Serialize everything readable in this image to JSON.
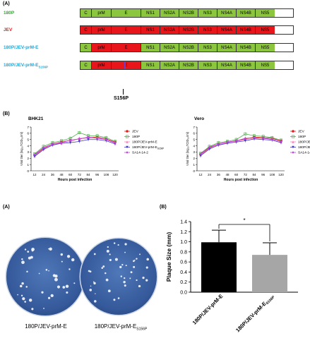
{
  "panelA": {
    "label": "(A)",
    "constructs": [
      {
        "name": "180P",
        "name_color": "#2da52d",
        "segments": [
          "C",
          "prM",
          "E",
          "NS1",
          "NS2A",
          "NS2B",
          "NS3",
          "NS4A",
          "NS4B",
          "NS5"
        ],
        "fills": [
          "green",
          "green",
          "green",
          "green",
          "green",
          "green",
          "green",
          "green",
          "green",
          "green"
        ]
      },
      {
        "name": "JEV",
        "name_color": "#e11b1b",
        "segments": [
          "C",
          "prM",
          "E",
          "NS1",
          "NS2A",
          "NS2B",
          "NS3",
          "NS4A",
          "NS4B",
          "NS5"
        ],
        "fills": [
          "red",
          "red",
          "red",
          "red",
          "red",
          "red",
          "red",
          "red",
          "red",
          "red"
        ]
      },
      {
        "name": "180P/JEV-prM-E",
        "name_color": "#1aa8d8",
        "segments": [
          "C",
          "prM",
          "E",
          "NS1",
          "NS2A",
          "NS2B",
          "NS3",
          "NS4A",
          "NS4B",
          "NS5"
        ],
        "fills": [
          "green",
          "red",
          "red",
          "green",
          "green",
          "green",
          "green",
          "green",
          "green",
          "green"
        ]
      },
      {
        "name": "180P/JEV-prM-E",
        "name_sub": "S156P",
        "name_color": "#1aa8d8",
        "segments": [
          "C",
          "prM",
          "E",
          "NS1",
          "NS2A",
          "NS2B",
          "NS3",
          "NS4A",
          "NS4B",
          "NS5"
        ],
        "fills": [
          "green",
          "red",
          "red",
          "green",
          "green",
          "green",
          "green",
          "green",
          "green",
          "green"
        ]
      }
    ],
    "mutation_label": "S156P",
    "colors": {
      "green": "#8cc63f",
      "red": "#e8161b",
      "mutation": "#6a3fd0"
    }
  },
  "panelB_growth": {
    "label": "(B)",
    "charts": [
      {
        "title": "BHK21"
      },
      {
        "title": "Vero"
      }
    ],
    "ylabel": "Viral titer (log₁₀TCID₅₀/ml)",
    "xlabel": "Hours post infection",
    "legend": [
      "JEV",
      "180P",
      "180P/JEV-prM-E",
      "180P/JEV-prM-E",
      "SA14-14-2"
    ],
    "legend_sub": [
      "",
      "",
      "",
      "S156P",
      ""
    ]
  },
  "chart_data": [
    {
      "type": "line",
      "title": "BHK21",
      "xlabel": "Hours post infection",
      "ylabel": "Viral titer (log₁₀TCID₅₀/ml)",
      "x": [
        12,
        24,
        36,
        48,
        60,
        72,
        84,
        96,
        108,
        120
      ],
      "ylim": [
        0,
        7
      ],
      "yticks": [
        0,
        1,
        2,
        3,
        4,
        5,
        6,
        7
      ],
      "series": [
        {
          "name": "JEV",
          "color": "#e41a1c",
          "marker": "circle",
          "values": [
            2.5,
            3.6,
            4.3,
            4.6,
            4.9,
            5.1,
            5.3,
            5.4,
            5.1,
            4.6
          ]
        },
        {
          "name": "180P",
          "color": "#4daf4a",
          "marker": "square",
          "values": [
            2.7,
            3.9,
            4.5,
            4.8,
            5.2,
            6.1,
            5.6,
            5.6,
            5.3,
            4.7
          ]
        },
        {
          "name": "180P/JEV-prM-E",
          "color": "#f781bf",
          "marker": "triangle",
          "values": [
            2.4,
            3.5,
            4.2,
            4.4,
            4.7,
            5.2,
            5.2,
            5.3,
            5.0,
            4.4
          ]
        },
        {
          "name": "180P/JEV-prM-E S156P",
          "color": "#3f37c9",
          "marker": "triangle-down",
          "values": [
            2.3,
            3.4,
            4.1,
            4.4,
            4.5,
            4.7,
            5.0,
            5.0,
            4.8,
            4.3
          ]
        },
        {
          "name": "SA14-14-2",
          "color": "#c043e0",
          "marker": "diamond",
          "values": [
            2.6,
            3.7,
            4.3,
            4.5,
            4.9,
            5.1,
            5.4,
            5.2,
            5.0,
            4.5
          ]
        }
      ]
    },
    {
      "type": "line",
      "title": "Vero",
      "xlabel": "Hours post infection",
      "ylabel": "Viral titer (log₁₀TCID₅₀/ml)",
      "x": [
        12,
        24,
        36,
        48,
        60,
        72,
        84,
        96,
        108,
        120
      ],
      "ylim": [
        0,
        7
      ],
      "yticks": [
        0,
        1,
        2,
        3,
        4,
        5,
        6,
        7
      ],
      "series": [
        {
          "name": "JEV",
          "color": "#e41a1c",
          "marker": "circle",
          "values": [
            2.6,
            3.7,
            4.3,
            4.6,
            4.8,
            5.1,
            5.4,
            5.3,
            5.2,
            4.8
          ]
        },
        {
          "name": "180P",
          "color": "#4daf4a",
          "marker": "square",
          "values": [
            2.8,
            3.9,
            4.5,
            4.7,
            5.0,
            5.9,
            5.6,
            5.5,
            5.3,
            4.9
          ]
        },
        {
          "name": "180P/JEV-prM-E",
          "color": "#f781bf",
          "marker": "triangle",
          "values": [
            2.5,
            3.6,
            4.2,
            4.5,
            4.7,
            5.0,
            5.2,
            5.2,
            5.1,
            4.6
          ]
        },
        {
          "name": "180P/JEV-prM-E S156P",
          "color": "#3f37c9",
          "marker": "triangle-down",
          "values": [
            2.4,
            3.5,
            4.1,
            4.4,
            4.6,
            4.8,
            5.1,
            5.0,
            4.9,
            4.5
          ]
        },
        {
          "name": "SA14-14-2",
          "color": "#c043e0",
          "marker": "diamond",
          "values": [
            2.7,
            3.8,
            4.3,
            4.6,
            4.8,
            5.2,
            5.3,
            5.2,
            5.0,
            4.7
          ]
        }
      ]
    },
    {
      "type": "bar",
      "ylabel": "Plaque Size (mm)",
      "ylim": [
        0,
        1.4
      ],
      "yticks": [
        0.0,
        0.2,
        0.4,
        0.6,
        0.8,
        1.0,
        1.2,
        1.4
      ],
      "categories": [
        "180P/JEV-prM-E",
        "180P/JEV-prM-E"
      ],
      "category_subs": [
        "",
        "S156P"
      ],
      "values": [
        0.99,
        0.74
      ],
      "errors": [
        0.24,
        0.24
      ],
      "colors": [
        "#000000",
        "#a6a6a6"
      ],
      "significance": "*"
    }
  ],
  "panelA2": {
    "label": "(A)",
    "plates": [
      {
        "label": "180P/JEV-prM-E",
        "label_sub": ""
      },
      {
        "label": "180P/JEV-prM-E",
        "label_sub": "S156P"
      }
    ]
  },
  "panelB2": {
    "label": "(B)"
  }
}
